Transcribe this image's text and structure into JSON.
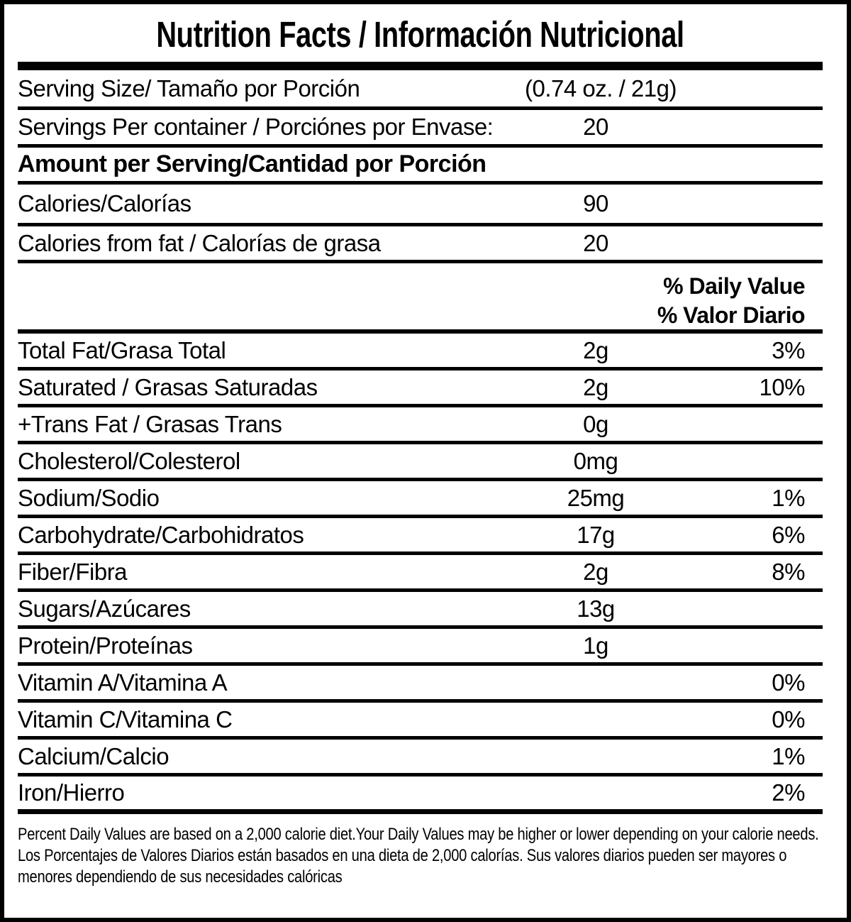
{
  "header": {
    "title": "Nutrition Facts / Información Nutricional"
  },
  "serving_info": [
    {
      "label": "Serving Size/ Tamaño por Porción",
      "value": "(0.74 oz. / 21g)"
    },
    {
      "label": "Servings Per container / Porciónes por Envase:",
      "value": "20"
    }
  ],
  "section_header": "Amount per Serving/Cantidad por Porción",
  "calorie_rows": [
    {
      "label": "Calories/Calorías",
      "value": "90"
    },
    {
      "label": "Calories from fat / Calorías de grasa",
      "value": "20"
    }
  ],
  "daily_value_headers": [
    "% Daily Value",
    "% Valor Diario"
  ],
  "nutrient_rows": [
    {
      "label": "Total Fat/Grasa Total",
      "amount": "2g",
      "dv": "3%"
    },
    {
      "label": "Saturated / Grasas Saturadas",
      "amount": "2g",
      "dv": "10%"
    },
    {
      "label": "+Trans Fat / Grasas Trans",
      "amount": "0g",
      "dv": ""
    },
    {
      "label": "Cholesterol/Colesterol",
      "amount": "0mg",
      "dv": ""
    },
    {
      "label": "Sodium/Sodio",
      "amount": "25mg",
      "dv": "1%"
    },
    {
      "label": "Carbohydrate/Carbohidratos",
      "amount": "17g",
      "dv": "6%"
    },
    {
      "label": "Fiber/Fibra",
      "amount": "2g",
      "dv": "8%"
    },
    {
      "label": "Sugars/Azúcares",
      "amount": "13g",
      "dv": ""
    },
    {
      "label": "Protein/Proteínas",
      "amount": "1g",
      "dv": ""
    },
    {
      "label": "Vitamin A/Vitamina A",
      "amount": "",
      "dv": "0%"
    },
    {
      "label": "Vitamin C/Vitamina C",
      "amount": "",
      "dv": "0%"
    },
    {
      "label": "Calcium/Calcio",
      "amount": "",
      "dv": "1%"
    },
    {
      "label": "Iron/Hierro",
      "amount": "",
      "dv": "2%"
    }
  ],
  "footnotes": {
    "english": "Percent Daily Values are based on a 2,000 calorie diet.Your Daily Values may be higher or lower depending on your calorie needs.",
    "spanish": "Los Porcentajes de Valores Diarios están basados en una dieta de 2,000 calorías. Sus valores diarios pueden ser mayores o menores dependiendo de sus necesidades calóricas"
  },
  "colors": {
    "background": "#ffffff",
    "text": "#000000",
    "rule": "#000000"
  }
}
